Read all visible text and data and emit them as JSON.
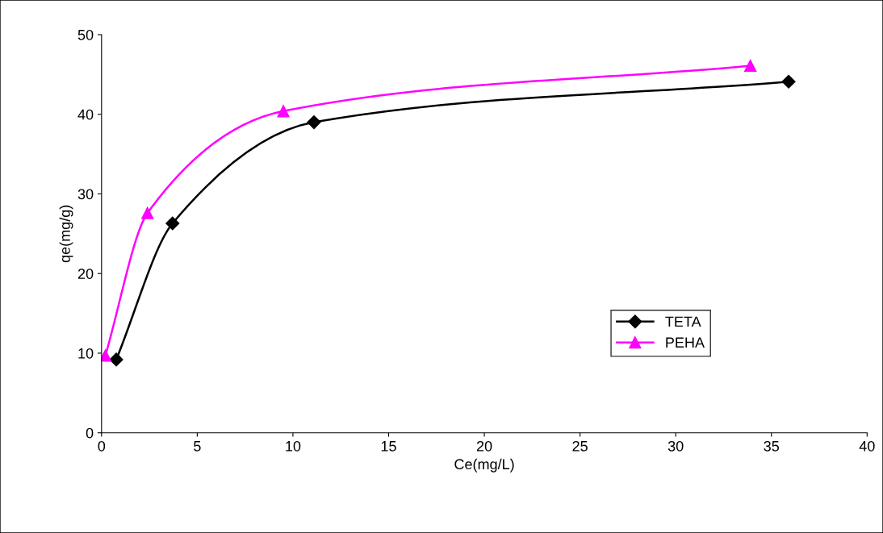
{
  "chart_data": {
    "type": "line",
    "xlabel": "Ce(mg/L)",
    "ylabel": "qe(mg/g)",
    "xlim": [
      0,
      40
    ],
    "xticks": [
      0,
      5,
      10,
      15,
      20,
      25,
      30,
      35,
      40
    ],
    "ylim": [
      0,
      50
    ],
    "yticks": [
      0,
      10,
      20,
      30,
      40,
      50
    ],
    "grid": false,
    "legend": "bottom right",
    "series": [
      {
        "name": "TETA",
        "color": "#000000",
        "marker": "diamond",
        "x": [
          0.77,
          3.71,
          11.1,
          35.9
        ],
        "values": [
          9.2,
          26.3,
          39.0,
          44.1
        ]
      },
      {
        "name": "PEHA",
        "color": "#ff00ff",
        "marker": "triangle",
        "x": [
          0.2,
          2.4,
          9.5,
          33.9
        ],
        "values": [
          9.7,
          27.6,
          40.4,
          46.1
        ]
      }
    ]
  }
}
